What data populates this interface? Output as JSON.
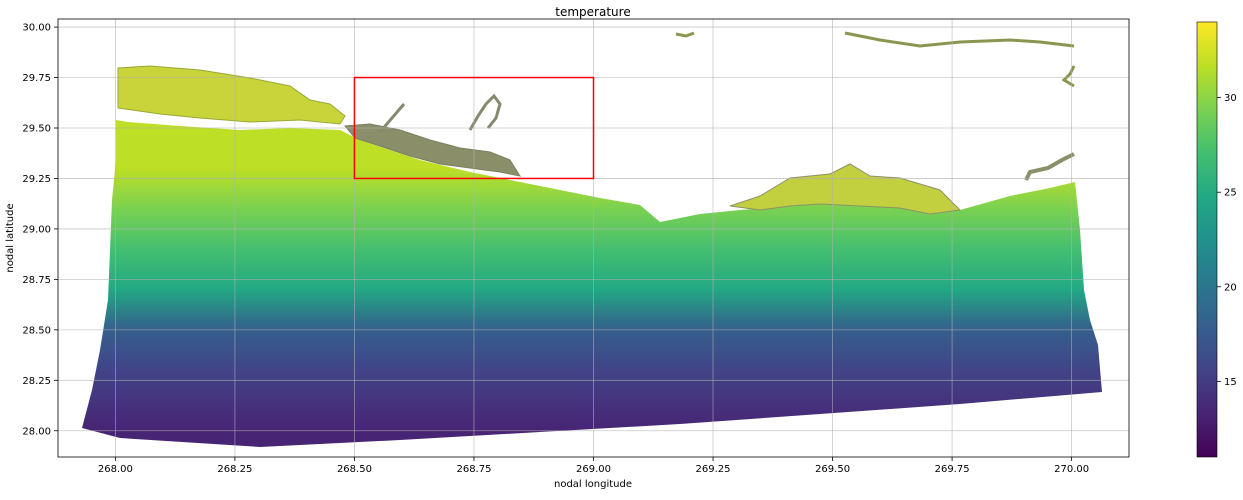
{
  "chart_data": [
    {
      "type": "heatmap",
      "title": "temperature",
      "xlabel": "nodal longitude",
      "ylabel": "nodal latitude",
      "xlim": [
        267.88,
        270.12
      ],
      "ylim": [
        27.87,
        30.04
      ],
      "grid": true,
      "x_ticks": [
        268.0,
        268.25,
        268.5,
        268.75,
        269.0,
        269.25,
        269.5,
        269.75,
        270.0
      ],
      "x_tick_labels": [
        "268.00",
        "268.25",
        "268.50",
        "268.75",
        "269.00",
        "269.25",
        "269.50",
        "269.75",
        "270.00"
      ],
      "y_ticks": [
        28.0,
        28.25,
        28.5,
        28.75,
        29.0,
        29.25,
        29.5,
        29.75,
        30.0
      ],
      "y_tick_labels": [
        "28.00",
        "28.25",
        "28.50",
        "28.75",
        "29.00",
        "29.25",
        "29.50",
        "29.75",
        "30.00"
      ],
      "colormap": "viridis",
      "colorbar": {
        "range": [
          11,
          34
        ],
        "ticks": [
          15,
          20,
          25,
          30
        ],
        "tick_labels": [
          "15",
          "20",
          "25",
          "30"
        ]
      },
      "highlight_box": {
        "x": [
          268.5,
          269.0
        ],
        "y": [
          29.25,
          29.75
        ],
        "color": "#ff0000"
      },
      "field_samples": [
        {
          "lat": 29.7,
          "value": 32
        },
        {
          "lat": 29.3,
          "value": 31
        },
        {
          "lat": 29.1,
          "value": 29
        },
        {
          "lat": 28.9,
          "value": 26
        },
        {
          "lat": 28.7,
          "value": 24
        },
        {
          "lat": 28.5,
          "value": 19
        },
        {
          "lat": 28.3,
          "value": 15
        },
        {
          "lat": 28.0,
          "value": 13
        }
      ]
    }
  ]
}
